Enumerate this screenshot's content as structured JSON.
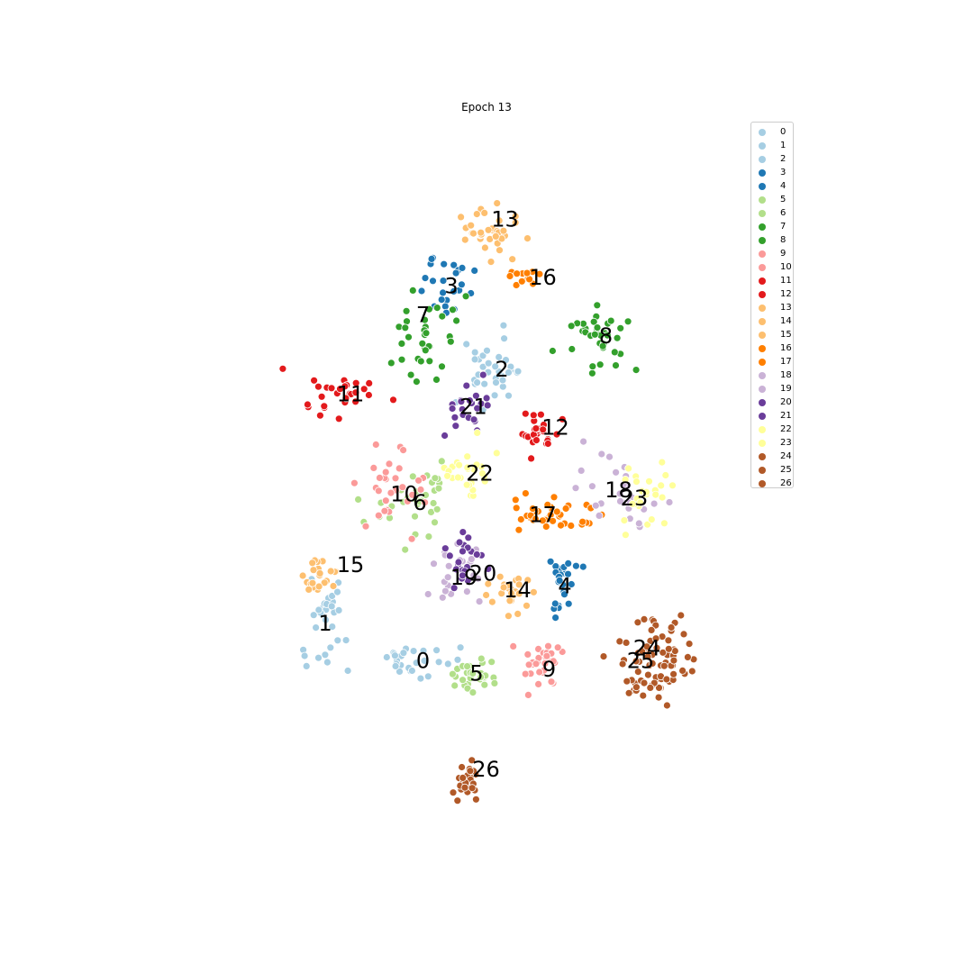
{
  "chart_data": {
    "type": "scatter",
    "title": "Epoch 13",
    "xlabel": "",
    "ylabel": "",
    "axes_visible": false,
    "grid": false,
    "legend_position": "top-right",
    "xlim": [
      -40,
      40
    ],
    "ylim": [
      -40,
      40
    ],
    "marker_edge": "#ffffff",
    "series": [
      {
        "name": "0",
        "color": "#a6cee3",
        "center": [
          -11.5,
          -22.0
        ],
        "spread": [
          3.5,
          1.2
        ],
        "count": 28
      },
      {
        "name": "1",
        "color": "#a6cee3",
        "center": [
          -27.0,
          -17.0
        ],
        "spread": [
          1.8,
          3.0
        ],
        "count": 30
      },
      {
        "name": "2",
        "color": "#a6cee3",
        "center": [
          -0.5,
          12.5
        ],
        "spread": [
          3.0,
          2.3
        ],
        "count": 34
      },
      {
        "name": "3",
        "color": "#1f78b4",
        "center": [
          -7.5,
          23.0
        ],
        "spread": [
          2.5,
          1.8
        ],
        "count": 24
      },
      {
        "name": "4",
        "color": "#1f78b4",
        "center": [
          10.5,
          -13.0
        ],
        "spread": [
          1.5,
          2.2
        ],
        "count": 26
      },
      {
        "name": "5",
        "color": "#b2df8a",
        "center": [
          -3.0,
          -23.5
        ],
        "spread": [
          2.0,
          1.2
        ],
        "count": 28
      },
      {
        "name": "6",
        "color": "#b2df8a",
        "center": [
          -12.0,
          -3.0
        ],
        "spread": [
          3.0,
          2.5
        ],
        "count": 32
      },
      {
        "name": "7",
        "color": "#33a02c",
        "center": [
          -11.5,
          17.5
        ],
        "spread": [
          3.5,
          3.0
        ],
        "count": 34
      },
      {
        "name": "8",
        "color": "#33a02c",
        "center": [
          17.0,
          16.0
        ],
        "spread": [
          2.5,
          1.8
        ],
        "count": 36
      },
      {
        "name": "9",
        "color": "#fb9a99",
        "center": [
          7.5,
          -22.5
        ],
        "spread": [
          1.8,
          1.3
        ],
        "count": 32
      },
      {
        "name": "10",
        "color": "#fb9a99",
        "center": [
          -17.0,
          -1.5
        ],
        "spread": [
          2.5,
          2.5
        ],
        "count": 30
      },
      {
        "name": "11",
        "color": "#e31a1c",
        "center": [
          -25.0,
          10.0
        ],
        "spread": [
          3.0,
          1.5
        ],
        "count": 28
      },
      {
        "name": "12",
        "color": "#e31a1c",
        "center": [
          6.5,
          5.5
        ],
        "spread": [
          1.5,
          1.3
        ],
        "count": 26
      },
      {
        "name": "13",
        "color": "#fdbf6f",
        "center": [
          -1.0,
          29.5
        ],
        "spread": [
          2.5,
          1.6
        ],
        "count": 34
      },
      {
        "name": "14",
        "color": "#fdbf6f",
        "center": [
          2.5,
          -14.0
        ],
        "spread": [
          2.0,
          1.5
        ],
        "count": 24
      },
      {
        "name": "15",
        "color": "#fdbf6f",
        "center": [
          -28.0,
          -12.0
        ],
        "spread": [
          1.5,
          1.3
        ],
        "count": 24
      },
      {
        "name": "16",
        "color": "#ff7f00",
        "center": [
          5.5,
          24.0
        ],
        "spread": [
          1.5,
          0.5
        ],
        "count": 12
      },
      {
        "name": "17",
        "color": "#ff7f00",
        "center": [
          7.0,
          -4.5
        ],
        "spread": [
          3.5,
          1.0
        ],
        "count": 38
      },
      {
        "name": "18",
        "color": "#cab2d6",
        "center": [
          21.0,
          -1.0
        ],
        "spread": [
          3.5,
          2.5
        ],
        "count": 28
      },
      {
        "name": "19",
        "color": "#cab2d6",
        "center": [
          -6.0,
          -11.5
        ],
        "spread": [
          2.0,
          2.0
        ],
        "count": 24
      },
      {
        "name": "20",
        "color": "#6a3d9a",
        "center": [
          -4.5,
          -10.0
        ],
        "spread": [
          1.8,
          2.0
        ],
        "count": 22
      },
      {
        "name": "21",
        "color": "#6a3d9a",
        "center": [
          -5.0,
          8.5
        ],
        "spread": [
          2.0,
          2.0
        ],
        "count": 22
      },
      {
        "name": "22",
        "color": "#ffff99",
        "center": [
          -4.0,
          0.5
        ],
        "spread": [
          1.8,
          1.8
        ],
        "count": 26
      },
      {
        "name": "23",
        "color": "#ffff99",
        "center": [
          24.0,
          -2.0
        ],
        "spread": [
          2.5,
          2.5
        ],
        "count": 26
      },
      {
        "name": "24",
        "color": "#b15928",
        "center": [
          25.0,
          -20.0
        ],
        "spread": [
          3.0,
          2.0
        ],
        "count": 40
      },
      {
        "name": "25",
        "color": "#b15928",
        "center": [
          25.0,
          -24.0
        ],
        "spread": [
          3.0,
          1.5
        ],
        "count": 40
      },
      {
        "name": "26",
        "color": "#b15928",
        "center": [
          -4.5,
          -36.5
        ],
        "spread": [
          1.0,
          1.2
        ],
        "count": 24
      }
    ],
    "annotations": [
      {
        "text": "0",
        "x": -11.5,
        "y": -22.0
      },
      {
        "text": "1",
        "x": -27.0,
        "y": -17.5
      },
      {
        "text": "2",
        "x": 1.0,
        "y": 13.0
      },
      {
        "text": "3",
        "x": -7.0,
        "y": 23.0
      },
      {
        "text": "4",
        "x": 11.0,
        "y": -13.0
      },
      {
        "text": "5",
        "x": -3.0,
        "y": -23.5
      },
      {
        "text": "6",
        "x": -12.0,
        "y": -3.0
      },
      {
        "text": "7",
        "x": -11.5,
        "y": 19.5
      },
      {
        "text": "8",
        "x": 17.5,
        "y": 17.0
      },
      {
        "text": "9",
        "x": 8.5,
        "y": -23.0
      },
      {
        "text": "10",
        "x": -14.5,
        "y": -2.0
      },
      {
        "text": "11",
        "x": -23.0,
        "y": 10.0
      },
      {
        "text": "12",
        "x": 9.5,
        "y": 6.0
      },
      {
        "text": "13",
        "x": 1.5,
        "y": 31.0
      },
      {
        "text": "14",
        "x": 3.5,
        "y": -13.5
      },
      {
        "text": "15",
        "x": -23.0,
        "y": -10.5
      },
      {
        "text": "16",
        "x": 7.5,
        "y": 24.0
      },
      {
        "text": "17",
        "x": 7.5,
        "y": -4.5
      },
      {
        "text": "18",
        "x": 19.5,
        "y": -1.5
      },
      {
        "text": "19",
        "x": -5.0,
        "y": -12.0
      },
      {
        "text": "20",
        "x": -2.0,
        "y": -11.5
      },
      {
        "text": "21",
        "x": -3.5,
        "y": 8.5
      },
      {
        "text": "22",
        "x": -2.5,
        "y": 0.5
      },
      {
        "text": "23",
        "x": 22.0,
        "y": -2.5
      },
      {
        "text": "24",
        "x": 24.0,
        "y": -20.5
      },
      {
        "text": "25",
        "x": 23.0,
        "y": -22.0
      },
      {
        "text": "26",
        "x": -1.5,
        "y": -35.0
      }
    ]
  }
}
